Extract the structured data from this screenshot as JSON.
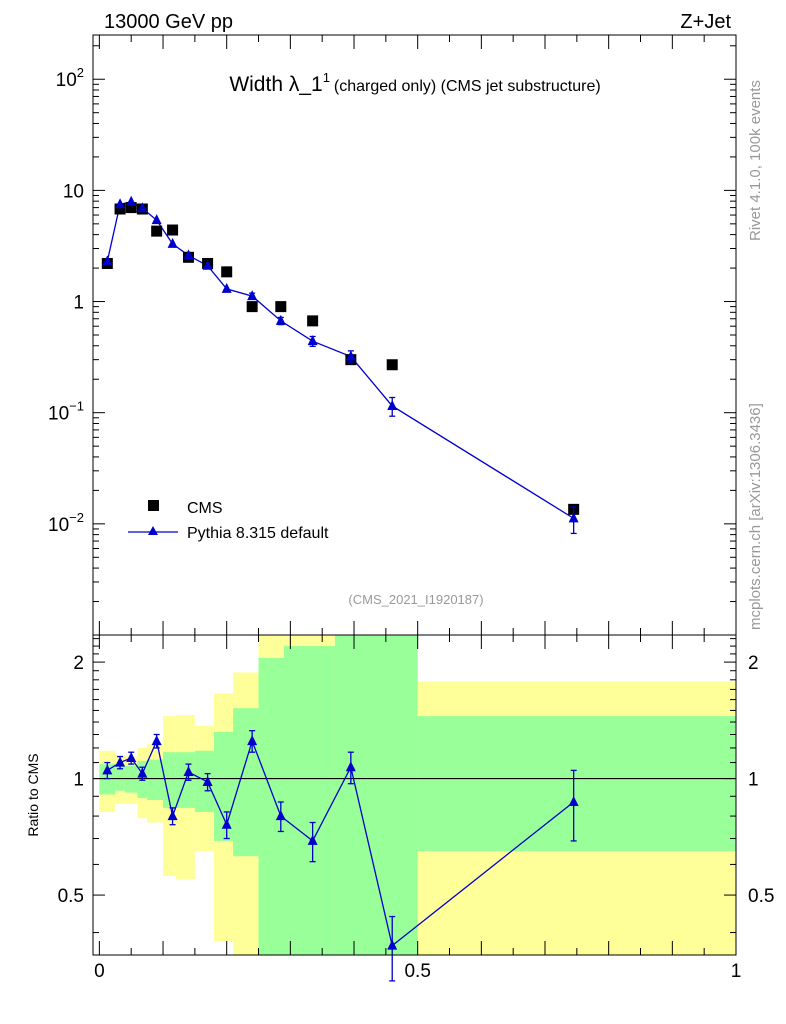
{
  "header": {
    "left": "13000 GeV pp",
    "right": "Z+Jet"
  },
  "side_text": {
    "rivet": "Rivet 4.1.0,  100k events",
    "mcplots": "mcplots.cern.ch [arXiv:1306.3436]"
  },
  "colors": {
    "data": "#000000",
    "mc": "#0000cc",
    "band_inner": "#99ff99",
    "band_outer": "#ffff99",
    "watermark": "#999999"
  },
  "chart_data": [
    {
      "type": "scatter",
      "title": "Width λ_1",
      "title_sup": "1",
      "title_suffix": "(charged only) (CMS jet substructure)",
      "watermark": "(CMS_2021_I1920187)",
      "yscale": "log",
      "ylim": [
        0.001,
        250
      ],
      "xlim": [
        -0.01,
        1.0
      ],
      "legend_position": "bottom-left",
      "y_ticks": [
        {
          "v": 0.01,
          "base": "10",
          "exp": "−2"
        },
        {
          "v": 0.1,
          "base": "10",
          "exp": "−1"
        },
        {
          "v": 1,
          "base": "1",
          "exp": ""
        },
        {
          "v": 10,
          "base": "10",
          "exp": ""
        },
        {
          "v": 100,
          "base": "10",
          "exp": "2"
        }
      ],
      "series": [
        {
          "name": "CMS",
          "marker": "square",
          "x": [
            0.0125,
            0.0325,
            0.05,
            0.0675,
            0.09,
            0.115,
            0.14,
            0.17,
            0.2,
            0.24,
            0.285,
            0.335,
            0.395,
            0.46,
            0.745
          ],
          "y": [
            2.2,
            6.8,
            7.0,
            6.8,
            4.3,
            4.4,
            2.5,
            2.2,
            1.85,
            0.9,
            0.9,
            0.67,
            0.3,
            0.27,
            0.0135
          ],
          "err": [
            0,
            0,
            0,
            0,
            0,
            0,
            0,
            0,
            0,
            0,
            0,
            0,
            0,
            0,
            0
          ]
        },
        {
          "name": "Pythia 8.315 default",
          "marker": "triangle",
          "x": [
            0.0125,
            0.0325,
            0.05,
            0.0675,
            0.09,
            0.115,
            0.14,
            0.17,
            0.2,
            0.24,
            0.285,
            0.335,
            0.395,
            0.46,
            0.745
          ],
          "y": [
            2.3,
            7.5,
            7.9,
            6.9,
            5.4,
            3.3,
            2.6,
            2.1,
            1.3,
            1.12,
            0.67,
            0.44,
            0.32,
            0.115,
            0.0112
          ],
          "err": [
            0.1,
            0.3,
            0.3,
            0.3,
            0.25,
            0.18,
            0.12,
            0.1,
            0.07,
            0.07,
            0.05,
            0.045,
            0.04,
            0.022,
            0.003
          ]
        }
      ]
    },
    {
      "type": "scatter",
      "ylabel": "Ratio to CMS",
      "yscale": "log",
      "ylim": [
        0.35,
        2.35
      ],
      "xlim": [
        -0.01,
        1.0
      ],
      "y_ticks": [
        {
          "v": 0.5,
          "label": "0.5"
        },
        {
          "v": 1,
          "label": "1"
        },
        {
          "v": 2,
          "label": "2"
        }
      ],
      "x_ticks": [
        {
          "v": 0,
          "label": "0"
        },
        {
          "v": 0.5,
          "label": "0.5"
        },
        {
          "v": 1,
          "label": "1"
        }
      ],
      "reference_line": 1,
      "bands": {
        "edges": [
          0.0,
          0.025,
          0.04,
          0.06,
          0.075,
          0.1,
          0.12,
          0.15,
          0.18,
          0.21,
          0.25,
          0.29,
          0.37,
          0.5,
          1.0
        ],
        "inner_low": [
          0.91,
          0.93,
          0.92,
          0.89,
          0.88,
          0.84,
          0.84,
          0.82,
          0.69,
          0.63,
          0.2,
          0.2,
          0.2,
          0.65
        ],
        "inner_high": [
          1.09,
          1.08,
          1.08,
          1.11,
          1.12,
          1.17,
          1.17,
          1.18,
          1.32,
          1.52,
          2.05,
          2.2,
          2.35,
          1.45
        ],
        "outer_low": [
          0.82,
          0.86,
          0.86,
          0.79,
          0.77,
          0.56,
          0.55,
          0.65,
          0.38,
          0.2,
          0.2,
          0.2,
          0.2,
          0.2
        ],
        "outer_high": [
          1.18,
          1.15,
          1.14,
          1.2,
          1.23,
          1.45,
          1.46,
          1.37,
          1.66,
          1.88,
          2.5,
          2.5,
          2.2,
          1.78
        ]
      },
      "series": [
        {
          "name": "Pythia 8.315 default / CMS",
          "x": [
            0.0125,
            0.0325,
            0.05,
            0.0675,
            0.09,
            0.115,
            0.14,
            0.17,
            0.2,
            0.24,
            0.285,
            0.335,
            0.395,
            0.46,
            0.745
          ],
          "y": [
            1.05,
            1.1,
            1.13,
            1.03,
            1.25,
            0.8,
            1.04,
            0.98,
            0.76,
            1.25,
            0.8,
            0.69,
            1.07,
            0.37,
            0.87
          ],
          "err": [
            0.05,
            0.04,
            0.04,
            0.04,
            0.05,
            0.04,
            0.05,
            0.05,
            0.06,
            0.08,
            0.07,
            0.08,
            0.1,
            0.07,
            0.18
          ]
        }
      ]
    }
  ]
}
